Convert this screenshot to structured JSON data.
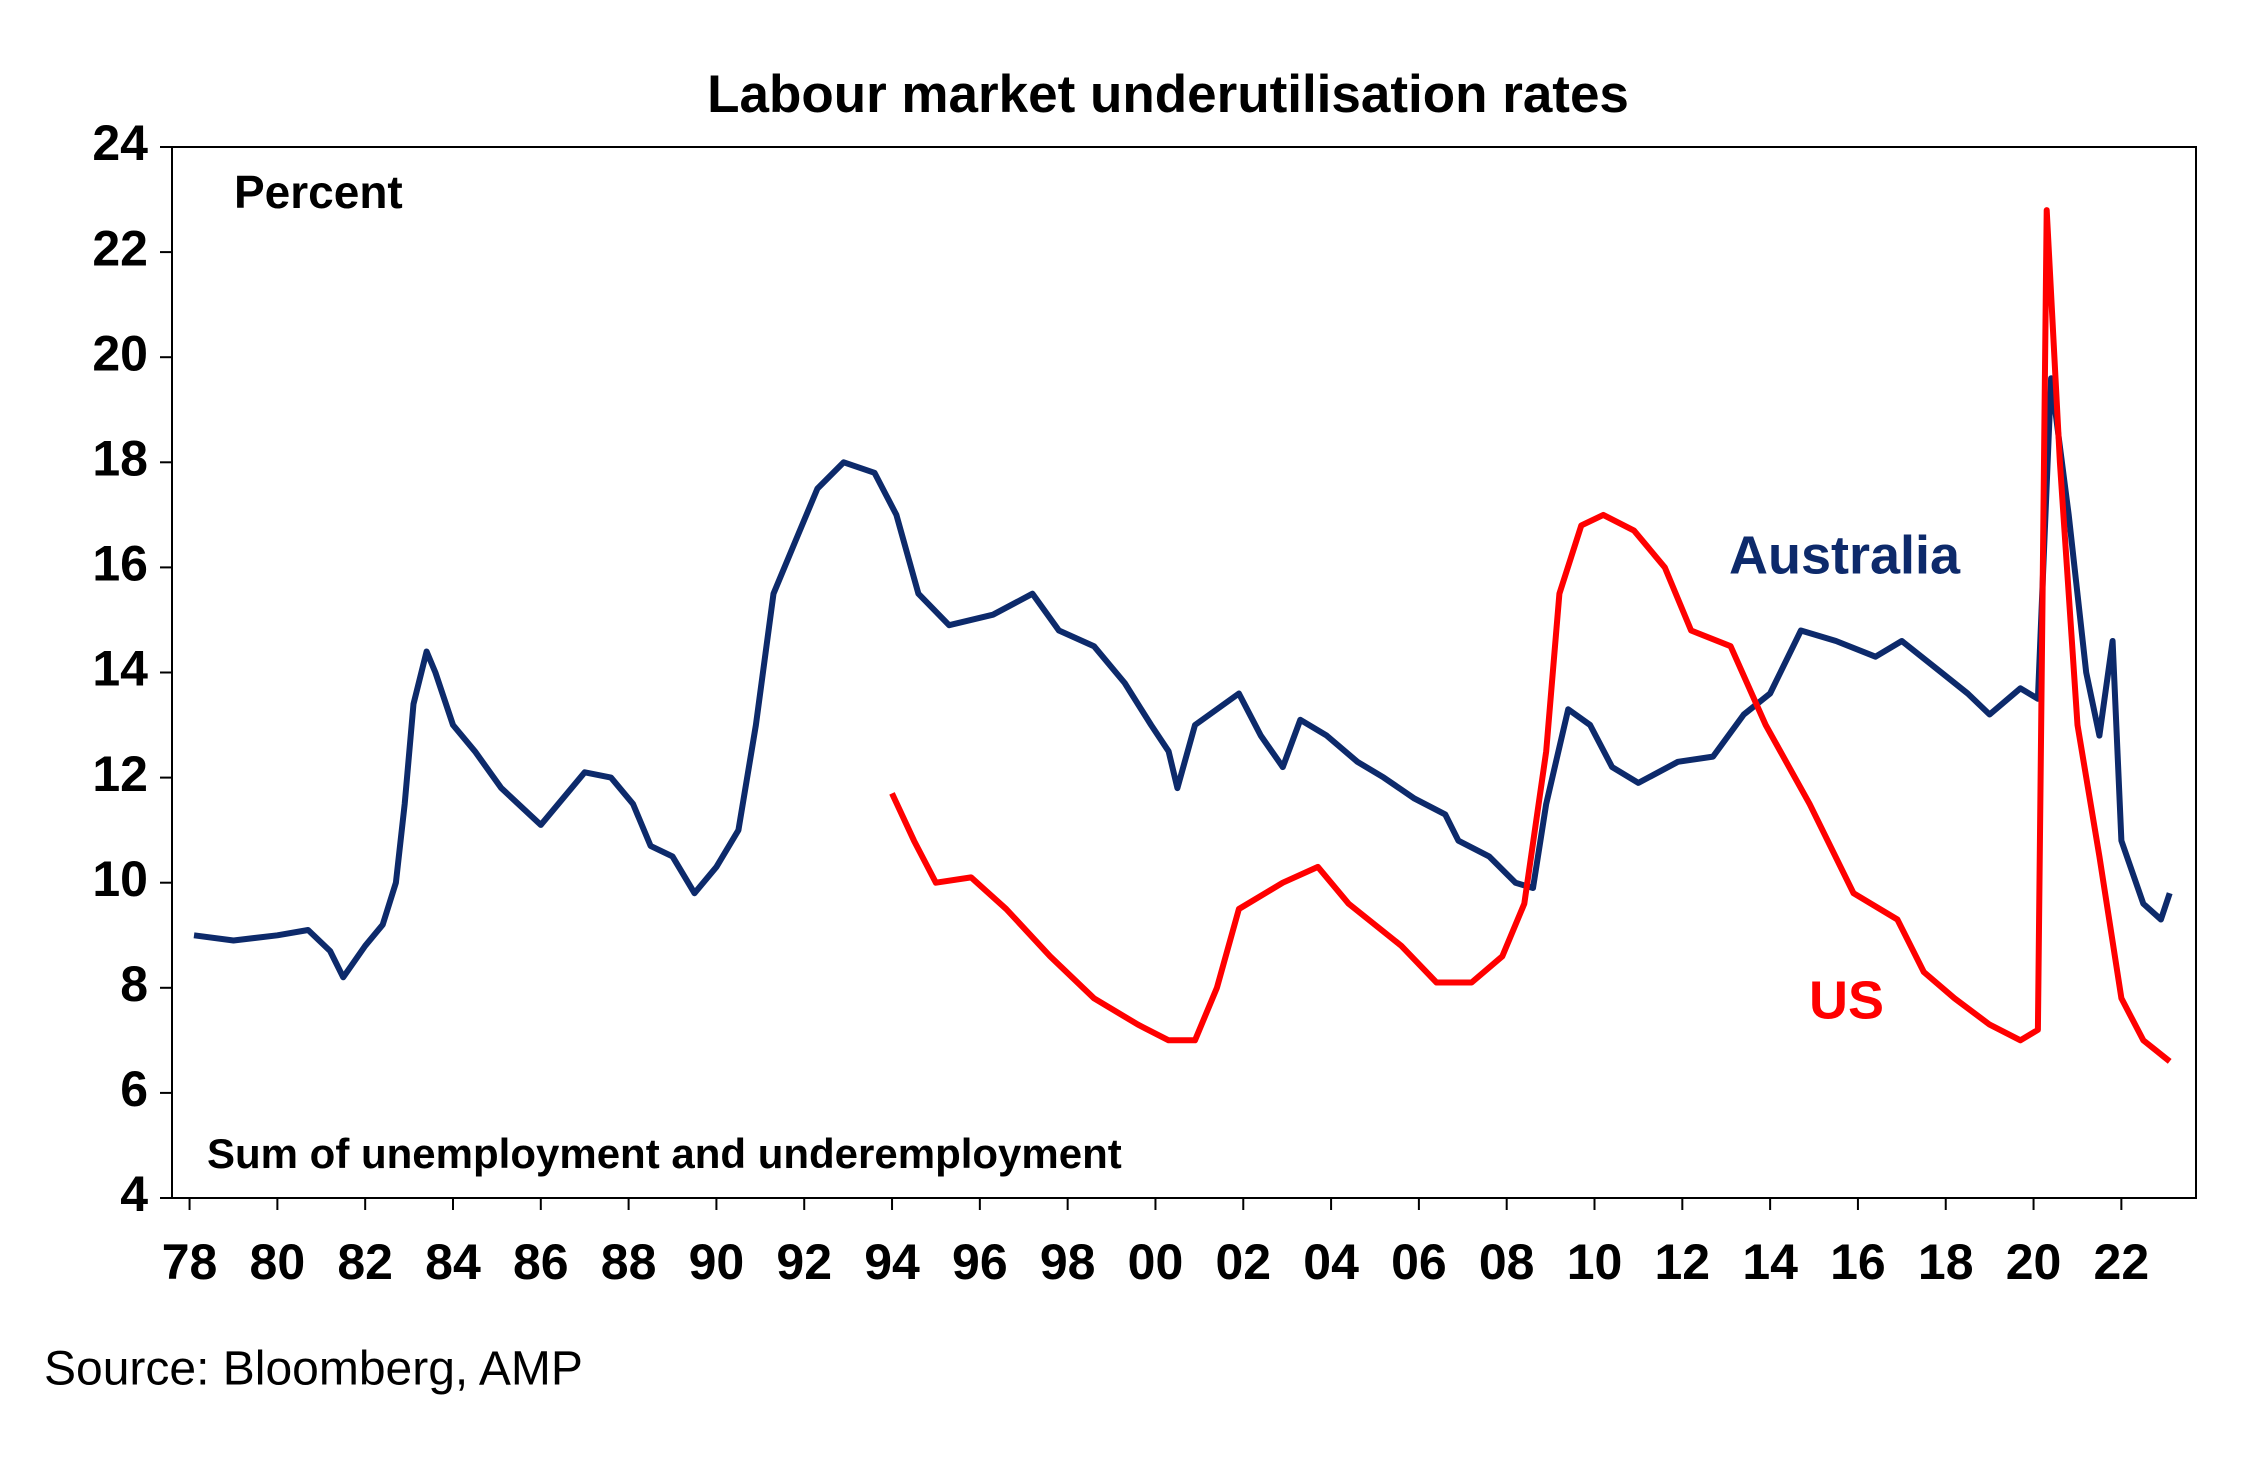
{
  "chart_data": {
    "type": "line",
    "title": "Labour market underutilisation rates",
    "y_label": "Percent",
    "annotation": "Sum of unemployment and underemployment",
    "source": "Source: Bloomberg, AMP",
    "xlim": [
      1977.6,
      2023.7
    ],
    "xticks": [
      {
        "value": 1978,
        "label": "78"
      },
      {
        "value": 1980,
        "label": "80"
      },
      {
        "value": 1982,
        "label": "82"
      },
      {
        "value": 1984,
        "label": "84"
      },
      {
        "value": 1986,
        "label": "86"
      },
      {
        "value": 1988,
        "label": "88"
      },
      {
        "value": 1990,
        "label": "90"
      },
      {
        "value": 1992,
        "label": "92"
      },
      {
        "value": 1994,
        "label": "94"
      },
      {
        "value": 1996,
        "label": "96"
      },
      {
        "value": 1998,
        "label": "98"
      },
      {
        "value": 2000,
        "label": "00"
      },
      {
        "value": 2002,
        "label": "02"
      },
      {
        "value": 2004,
        "label": "04"
      },
      {
        "value": 2006,
        "label": "06"
      },
      {
        "value": 2008,
        "label": "08"
      },
      {
        "value": 2010,
        "label": "10"
      },
      {
        "value": 2012,
        "label": "12"
      },
      {
        "value": 2014,
        "label": "14"
      },
      {
        "value": 2016,
        "label": "16"
      },
      {
        "value": 2018,
        "label": "18"
      },
      {
        "value": 2020,
        "label": "20"
      },
      {
        "value": 2022,
        "label": "22"
      }
    ],
    "ylim": [
      4,
      24
    ],
    "yticks": [
      4,
      6,
      8,
      10,
      12,
      14,
      16,
      18,
      20,
      22,
      24
    ],
    "grid": false,
    "series": [
      {
        "name": "Australia",
        "color": "#0d2a6b",
        "x": [
          1978.1,
          1979.0,
          1980.0,
          1980.7,
          1981.2,
          1981.5,
          1982.0,
          1982.4,
          1982.7,
          1982.9,
          1983.1,
          1983.4,
          1983.6,
          1984.0,
          1984.5,
          1985.1,
          1986.0,
          1986.5,
          1987.0,
          1987.6,
          1988.1,
          1988.5,
          1989.0,
          1989.5,
          1990.0,
          1990.5,
          1990.9,
          1991.3,
          1991.8,
          1992.3,
          1992.9,
          1993.6,
          1994.1,
          1994.6,
          1995.3,
          1996.3,
          1997.2,
          1997.8,
          1998.6,
          1999.3,
          1999.9,
          2000.3,
          2000.5,
          2000.9,
          2001.9,
          2002.4,
          2002.9,
          2003.3,
          2003.9,
          2004.6,
          2005.2,
          2005.9,
          2006.6,
          2006.9,
          2007.6,
          2008.2,
          2008.6,
          2008.9,
          2009.4,
          2009.9,
          2010.4,
          2011.0,
          2011.9,
          2012.7,
          2013.4,
          2014.0,
          2014.7,
          2015.5,
          2016.4,
          2017.0,
          2017.9,
          2018.5,
          2019.0,
          2019.7,
          2020.1,
          2020.4,
          2020.8,
          2021.2,
          2021.5,
          2021.8,
          2022.0,
          2022.5,
          2022.9,
          2023.1
        ],
        "values": [
          9.0,
          8.9,
          9.0,
          9.1,
          8.7,
          8.2,
          8.8,
          9.2,
          10.0,
          11.5,
          13.4,
          14.4,
          14.0,
          13.0,
          12.5,
          11.8,
          11.1,
          11.6,
          12.1,
          12.0,
          11.5,
          10.7,
          10.5,
          9.8,
          10.3,
          11.0,
          13.0,
          15.5,
          16.5,
          17.5,
          18.0,
          17.8,
          17.0,
          15.5,
          14.9,
          15.1,
          15.5,
          14.8,
          14.5,
          13.8,
          13.0,
          12.5,
          11.8,
          13.0,
          13.6,
          12.8,
          12.2,
          13.1,
          12.8,
          12.3,
          12.0,
          11.6,
          11.3,
          10.8,
          10.5,
          10.0,
          9.9,
          11.5,
          13.3,
          13.0,
          12.2,
          11.9,
          12.3,
          12.4,
          13.2,
          13.6,
          14.8,
          14.6,
          14.3,
          14.6,
          14.0,
          13.6,
          13.2,
          13.7,
          13.5,
          19.6,
          17.0,
          14.0,
          12.8,
          14.6,
          10.8,
          9.6,
          9.3,
          9.8
        ]
      },
      {
        "name": "US",
        "color": "#ff0000",
        "x": [
          1994.0,
          1994.5,
          1995.0,
          1995.8,
          1996.6,
          1997.6,
          1998.6,
          1999.6,
          2000.3,
          2000.9,
          2001.4,
          2001.9,
          2002.9,
          2003.7,
          2004.4,
          2005.6,
          2006.4,
          2007.2,
          2007.9,
          2008.4,
          2008.9,
          2009.2,
          2009.7,
          2010.2,
          2010.9,
          2011.6,
          2012.2,
          2013.1,
          2013.9,
          2014.9,
          2015.9,
          2016.9,
          2017.5,
          2018.2,
          2019.0,
          2019.7,
          2020.1,
          2020.3,
          2020.6,
          2021.0,
          2021.5,
          2022.0,
          2022.5,
          2023.1
        ],
        "values": [
          11.7,
          10.8,
          10.0,
          10.1,
          9.5,
          8.6,
          7.8,
          7.3,
          7.0,
          7.0,
          8.0,
          9.5,
          10.0,
          10.3,
          9.6,
          8.8,
          8.1,
          8.1,
          8.6,
          9.6,
          12.5,
          15.5,
          16.8,
          17.0,
          16.7,
          16.0,
          14.8,
          14.5,
          13.0,
          11.5,
          9.8,
          9.3,
          8.3,
          7.8,
          7.3,
          7.0,
          7.2,
          22.8,
          18.0,
          13.0,
          10.5,
          7.8,
          7.0,
          6.6
        ]
      }
    ]
  }
}
